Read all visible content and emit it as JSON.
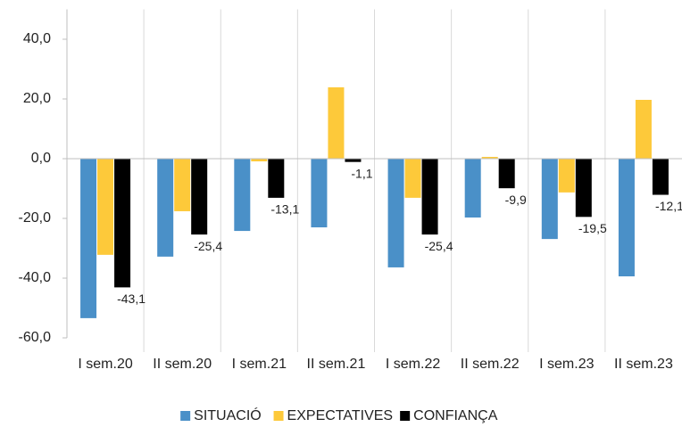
{
  "chart_data": {
    "type": "bar",
    "categories": [
      "I sem.20",
      "II sem.20",
      "I sem.21",
      "II sem.21",
      "I sem.22",
      "II sem.22",
      "I sem.23",
      "II sem.23"
    ],
    "series": [
      {
        "name": "SITUACIÓ",
        "color": "#4a90c8",
        "values": [
          -53.4,
          -32.8,
          -24.2,
          -23.0,
          -36.4,
          -19.7,
          -26.9,
          -39.4
        ]
      },
      {
        "name": "EXPECTATIVES",
        "color": "#fdc93a",
        "values": [
          -32.2,
          -17.6,
          -0.9,
          23.9,
          -13.1,
          0.6,
          -11.3,
          19.7
        ]
      },
      {
        "name": "CONFIANÇA",
        "color": "#000000",
        "values": [
          -43.1,
          -25.4,
          -13.1,
          -1.1,
          -25.4,
          -9.9,
          -19.5,
          -12.1
        ],
        "value_labels": [
          "-43,1",
          "-25,4",
          "-13,1",
          "-1,1",
          "-25,4",
          "-9,9",
          "-19,5",
          "-12,1"
        ]
      }
    ],
    "ylim": [
      -60,
      50
    ],
    "yticks": [
      {
        "value": -60,
        "label": "-60,0"
      },
      {
        "value": -40,
        "label": "-40,0"
      },
      {
        "value": -20,
        "label": "-20,0"
      },
      {
        "value": 0,
        "label": "0,0"
      },
      {
        "value": 20,
        "label": "20,0"
      },
      {
        "value": 40,
        "label": "40,0"
      }
    ]
  }
}
